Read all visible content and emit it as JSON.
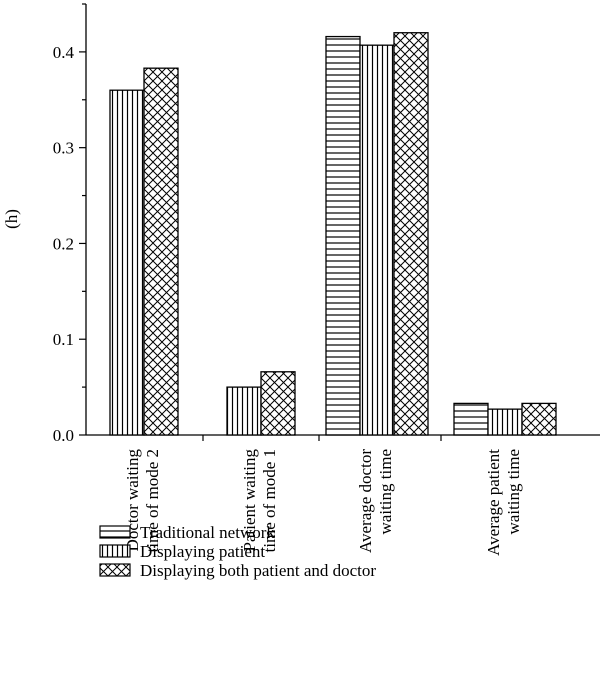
{
  "chart_data": {
    "type": "bar",
    "ylabel": "(h)",
    "ylim": [
      0,
      0.45
    ],
    "yticks": [
      "0.0",
      "0.1",
      "0.2",
      "0.3",
      "0.4"
    ],
    "ytick_values": [
      0,
      0.1,
      0.2,
      0.3,
      0.4
    ],
    "categories": [
      [
        "Doctor waiting",
        "time of mode 2"
      ],
      [
        "Patient waiting",
        "time of mode 1"
      ],
      [
        "Average doctor",
        "waiting time"
      ],
      [
        "Average patient",
        "waiting time"
      ]
    ],
    "series": [
      {
        "name": "Traditional network",
        "pattern": "horizontal-lines",
        "values": [
          null,
          null,
          0.416,
          0.033
        ]
      },
      {
        "name": "Displaying patient",
        "pattern": "vertical-lines",
        "values": [
          0.36,
          0.05,
          0.407,
          0.027
        ]
      },
      {
        "name": "Displaying both patient and doctor",
        "pattern": "crosshatch",
        "values": [
          0.383,
          0.066,
          0.42,
          0.033
        ]
      }
    ],
    "legend_position": "bottom-left",
    "grid": false
  }
}
